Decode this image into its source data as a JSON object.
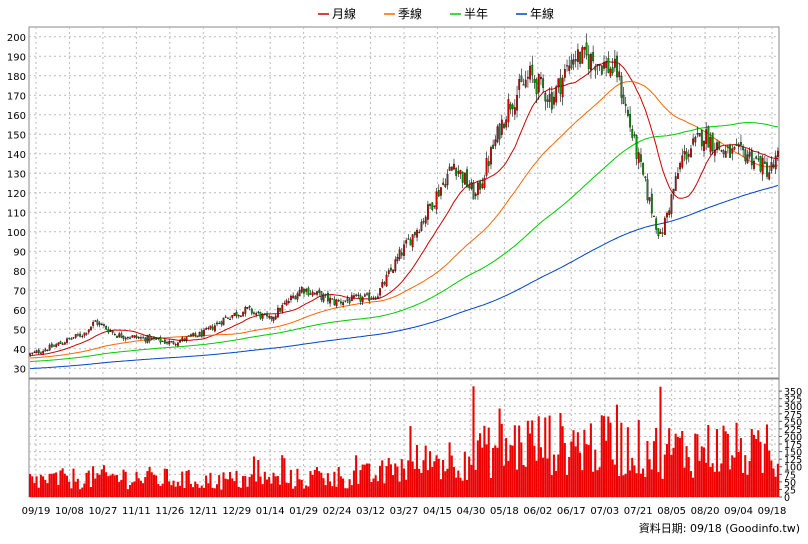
{
  "legend": {
    "items": [
      {
        "label": "月線",
        "color": "#cc0000"
      },
      {
        "label": "季線",
        "color": "#ff6600"
      },
      {
        "label": "半年",
        "color": "#00cc00"
      },
      {
        "label": "年線",
        "color": "#0044cc"
      }
    ]
  },
  "footer": {
    "text": "資料日期: 09/18  (Goodinfo.tw)"
  },
  "colors": {
    "up_candle": "#dd0000",
    "down_candle": "#009900",
    "volume": "#ee0000",
    "grid": "#bbbbbb"
  },
  "chart_data": {
    "type": "candlestick",
    "price_axis": {
      "ylim": [
        25,
        205
      ],
      "ticks": [
        30,
        40,
        50,
        60,
        70,
        80,
        90,
        100,
        110,
        120,
        130,
        140,
        150,
        160,
        170,
        180,
        190,
        200
      ]
    },
    "volume_axis": {
      "ylim": [
        0,
        390
      ],
      "ticks": [
        0,
        25,
        50,
        75,
        100,
        125,
        150,
        175,
        200,
        225,
        250,
        275,
        300,
        325,
        350
      ]
    },
    "x_ticks": [
      "09/19",
      "10/08",
      "10/27",
      "11/11",
      "11/26",
      "12/11",
      "12/29",
      "01/14",
      "01/29",
      "02/24",
      "03/12",
      "03/27",
      "04/15",
      "04/30",
      "05/18",
      "06/02",
      "06/17",
      "07/03",
      "07/21",
      "08/05",
      "08/20",
      "09/04",
      "09/18"
    ],
    "close_keypoints": [
      [
        0,
        37
      ],
      [
        10,
        41
      ],
      [
        25,
        48
      ],
      [
        30,
        54
      ],
      [
        40,
        47
      ],
      [
        55,
        45
      ],
      [
        65,
        43
      ],
      [
        80,
        48
      ],
      [
        90,
        56
      ],
      [
        100,
        60
      ],
      [
        110,
        55
      ],
      [
        125,
        71
      ],
      [
        140,
        64
      ],
      [
        155,
        66
      ],
      [
        160,
        68
      ],
      [
        170,
        88
      ],
      [
        180,
        105
      ],
      [
        195,
        135
      ],
      [
        205,
        118
      ],
      [
        220,
        165
      ],
      [
        230,
        180
      ],
      [
        240,
        168
      ],
      [
        250,
        190
      ],
      [
        260,
        188
      ],
      [
        270,
        182
      ],
      [
        278,
        145
      ],
      [
        285,
        115
      ],
      [
        290,
        97
      ],
      [
        300,
        138
      ],
      [
        310,
        150
      ],
      [
        320,
        140
      ],
      [
        330,
        140
      ],
      [
        340,
        131
      ],
      [
        344,
        138
      ]
    ],
    "volume_keypoints": [
      [
        0,
        60
      ],
      [
        40,
        75
      ],
      [
        80,
        60
      ],
      [
        120,
        65
      ],
      [
        160,
        80
      ],
      [
        175,
        120
      ],
      [
        200,
        150
      ],
      [
        230,
        200
      ],
      [
        260,
        190
      ],
      [
        290,
        170
      ],
      [
        320,
        180
      ],
      [
        344,
        140
      ]
    ],
    "series": [
      {
        "name": "月線",
        "period": 20
      },
      {
        "name": "季線",
        "period": 60
      },
      {
        "name": "半年",
        "period": 120
      },
      {
        "name": "年線",
        "period": 240
      }
    ]
  }
}
